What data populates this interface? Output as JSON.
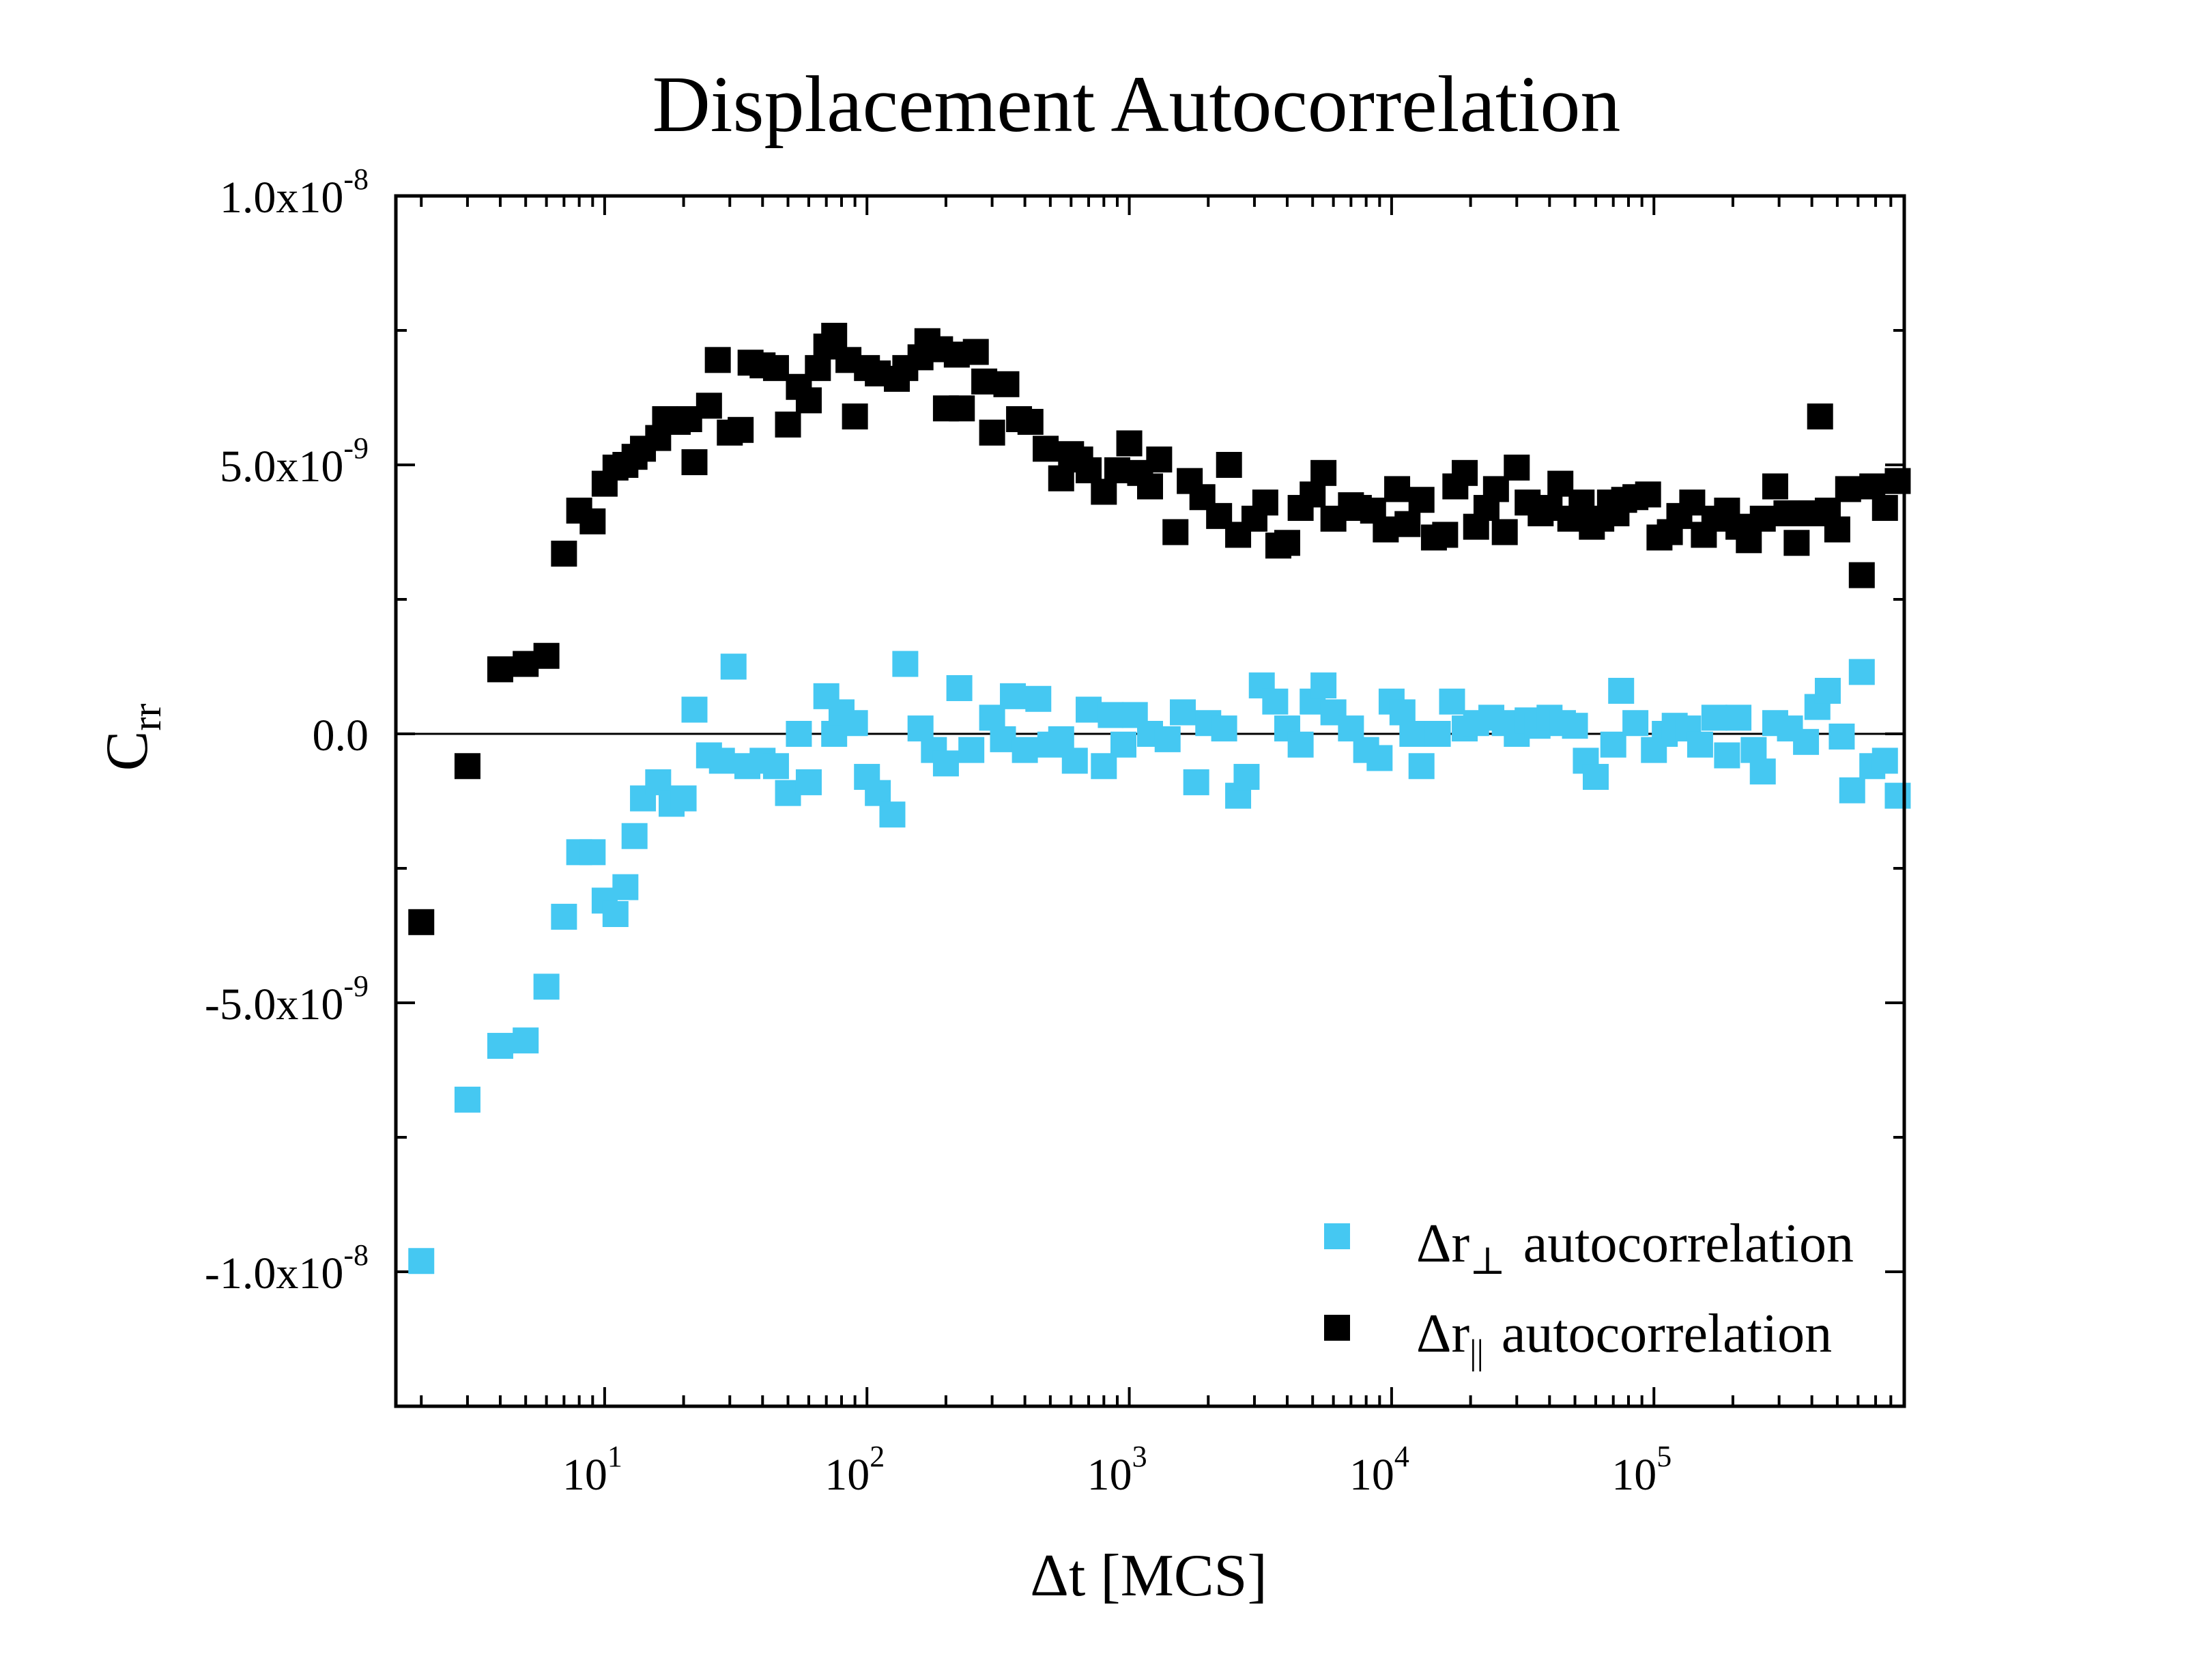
{
  "chart_data": {
    "type": "scatter",
    "title": "Displacement Autocorrelation",
    "xlabel": {
      "main": "Δt [MCS]"
    },
    "ylabel": {
      "main": "C",
      "sub": "rr"
    },
    "xscale": "log",
    "xlim": [
      1.6,
      900000
    ],
    "ylim": [
      -1.25e-08,
      1e-08
    ],
    "grid": false,
    "zero_line": true,
    "x_ticks": [
      {
        "value": 10,
        "base": "10",
        "exp": "1"
      },
      {
        "value": 100,
        "base": "10",
        "exp": "2"
      },
      {
        "value": 1000,
        "base": "10",
        "exp": "3"
      },
      {
        "value": 10000,
        "base": "10",
        "exp": "4"
      },
      {
        "value": 100000,
        "base": "10",
        "exp": "5"
      }
    ],
    "y_ticks": [
      {
        "value": 1e-08,
        "mantissa": "1.0x10",
        "exp": "-8"
      },
      {
        "value": 5e-09,
        "mantissa": "5.0x10",
        "exp": "-9"
      },
      {
        "value": 0,
        "mantissa": "0.0",
        "exp": ""
      },
      {
        "value": -5e-09,
        "mantissa": "-5.0x10",
        "exp": "-9"
      },
      {
        "value": -1e-08,
        "mantissa": "-1.0x10",
        "exp": "-8"
      }
    ],
    "legend_position": "bottom-right",
    "series": [
      {
        "name": "Δr⊥ autocorrelation",
        "label_main": "Δr",
        "label_sub": "⊥",
        "label_rest": "autocorrelation",
        "color": "#45c8f2",
        "points": [
          [
            2,
            -9.8e-09
          ],
          [
            3,
            -6.8e-09
          ],
          [
            4,
            -5.8e-09
          ],
          [
            5,
            -5.7e-09
          ],
          [
            6,
            -4.7e-09
          ],
          [
            7,
            -3.4e-09
          ],
          [
            8,
            -2.2e-09
          ],
          [
            9,
            -2.2e-09
          ],
          [
            10,
            -3.1e-09
          ],
          [
            11,
            -3.35e-09
          ],
          [
            12,
            -2.85e-09
          ],
          [
            13,
            -1.9e-09
          ],
          [
            14,
            -1.2e-09
          ],
          [
            16,
            -9e-10
          ],
          [
            18,
            -1.3e-09
          ],
          [
            20,
            -1.2e-09
          ],
          [
            22,
            4.5e-10
          ],
          [
            25,
            -4e-10
          ],
          [
            28,
            -5e-10
          ],
          [
            31,
            1.25e-09
          ],
          [
            35,
            -6e-10
          ],
          [
            40,
            -5e-10
          ],
          [
            45,
            -6e-10
          ],
          [
            50,
            -1.1e-09
          ],
          [
            55,
            0.0
          ],
          [
            60,
            -9e-10
          ],
          [
            70,
            7e-10
          ],
          [
            75,
            0.0
          ],
          [
            80,
            4e-10
          ],
          [
            90,
            2e-10
          ],
          [
            100,
            -8e-10
          ],
          [
            110,
            -1.1e-09
          ],
          [
            125,
            -1.5e-09
          ],
          [
            140,
            1.3e-09
          ],
          [
            160,
            1e-10
          ],
          [
            180,
            -3e-10
          ],
          [
            200,
            -5.5e-10
          ],
          [
            225,
            8.5e-10
          ],
          [
            250,
            -3e-10
          ],
          [
            300,
            3e-10
          ],
          [
            330,
            -1e-10
          ],
          [
            360,
            7e-10
          ],
          [
            400,
            -3e-10
          ],
          [
            450,
            6.5e-10
          ],
          [
            500,
            -2e-10
          ],
          [
            550,
            -1e-10
          ],
          [
            620,
            -5e-10
          ],
          [
            700,
            4.5e-10
          ],
          [
            800,
            -6e-10
          ],
          [
            850,
            3.5e-10
          ],
          [
            950,
            -2e-10
          ],
          [
            1050,
            3.5e-10
          ],
          [
            1200,
            0.0
          ],
          [
            1400,
            -1e-10
          ],
          [
            1600,
            4e-10
          ],
          [
            1800,
            -9e-10
          ],
          [
            2000,
            2e-10
          ],
          [
            2300,
            1e-10
          ],
          [
            2600,
            -1.15e-09
          ],
          [
            2800,
            -8e-10
          ],
          [
            3200,
            9e-10
          ],
          [
            3600,
            6e-10
          ],
          [
            4000,
            1e-10
          ],
          [
            4500,
            -2e-10
          ],
          [
            5000,
            6e-10
          ],
          [
            5500,
            9e-10
          ],
          [
            6000,
            4e-10
          ],
          [
            7000,
            1e-10
          ],
          [
            8000,
            -3e-10
          ],
          [
            9000,
            -4.5e-10
          ],
          [
            10000,
            6e-10
          ],
          [
            11000,
            4e-10
          ],
          [
            12000,
            0.0
          ],
          [
            13000,
            -6e-10
          ],
          [
            15000,
            0.0
          ],
          [
            17000,
            6e-10
          ],
          [
            19000,
            1e-10
          ],
          [
            21000,
            2e-10
          ],
          [
            24000,
            3e-10
          ],
          [
            27000,
            2e-10
          ],
          [
            30000,
            0.0
          ],
          [
            33000,
            2.5e-10
          ],
          [
            36000,
            1.5e-10
          ],
          [
            40000,
            3e-10
          ],
          [
            45000,
            2e-10
          ],
          [
            50000,
            1.5e-10
          ],
          [
            55000,
            -5e-10
          ],
          [
            60000,
            -8e-10
          ],
          [
            70000,
            -2e-10
          ],
          [
            75000,
            8e-10
          ],
          [
            85000,
            2e-10
          ],
          [
            100000,
            -3e-10
          ],
          [
            110000,
            0.0
          ],
          [
            120000,
            1.5e-10
          ],
          [
            135000,
            1e-10
          ],
          [
            150000,
            -2e-10
          ],
          [
            170000,
            3e-10
          ],
          [
            190000,
            -4e-10
          ],
          [
            210000,
            3e-10
          ],
          [
            240000,
            -3e-10
          ],
          [
            260000,
            -7e-10
          ],
          [
            290000,
            2e-10
          ],
          [
            330000,
            1e-10
          ],
          [
            380000,
            -1.5e-10
          ],
          [
            420000,
            5e-10
          ],
          [
            460000,
            8e-10
          ],
          [
            520000,
            -5e-11
          ],
          [
            570000,
            -1.05e-09
          ],
          [
            620000,
            1.15e-09
          ],
          [
            680000,
            -6e-10
          ],
          [
            760000,
            -5e-10
          ],
          [
            850000,
            -1.15e-09
          ]
        ]
      },
      {
        "name": "Δr∥ autocorrelation",
        "label_main": "Δr",
        "label_sub": "||",
        "label_rest": "autocorrelation",
        "color": "#000000",
        "points": [
          [
            2,
            -3.5e-09
          ],
          [
            3,
            -6e-10
          ],
          [
            4,
            1.2e-09
          ],
          [
            5,
            1.3e-09
          ],
          [
            6,
            1.45e-09
          ],
          [
            7,
            3.35e-09
          ],
          [
            8,
            4.15e-09
          ],
          [
            9,
            3.95e-09
          ],
          [
            10,
            4.65e-09
          ],
          [
            11,
            4.95e-09
          ],
          [
            12,
            5e-09
          ],
          [
            13,
            5.15e-09
          ],
          [
            14,
            5.3e-09
          ],
          [
            16,
            5.5e-09
          ],
          [
            17,
            5.85e-09
          ],
          [
            19,
            5.8e-09
          ],
          [
            21,
            5.85e-09
          ],
          [
            22,
            5.05e-09
          ],
          [
            25,
            6.1e-09
          ],
          [
            27,
            6.95e-09
          ],
          [
            30,
            5.6e-09
          ],
          [
            33,
            5.65e-09
          ],
          [
            36,
            6.9e-09
          ],
          [
            40,
            6.85e-09
          ],
          [
            45,
            6.8e-09
          ],
          [
            50,
            5.75e-09
          ],
          [
            55,
            6.45e-09
          ],
          [
            60,
            6.2e-09
          ],
          [
            65,
            6.8e-09
          ],
          [
            70,
            7.2e-09
          ],
          [
            75,
            7.4e-09
          ],
          [
            85,
            6.95e-09
          ],
          [
            90,
            5.9e-09
          ],
          [
            100,
            6.8e-09
          ],
          [
            110,
            6.7e-09
          ],
          [
            130,
            6.6e-09
          ],
          [
            140,
            6.8e-09
          ],
          [
            160,
            7e-09
          ],
          [
            170,
            7.3e-09
          ],
          [
            190,
            7.15e-09
          ],
          [
            200,
            6.05e-09
          ],
          [
            220,
            7.05e-09
          ],
          [
            230,
            6.05e-09
          ],
          [
            260,
            7.1e-09
          ],
          [
            280,
            6.55e-09
          ],
          [
            300,
            5.6e-09
          ],
          [
            340,
            6.5e-09
          ],
          [
            380,
            5.85e-09
          ],
          [
            420,
            5.8e-09
          ],
          [
            480,
            5.3e-09
          ],
          [
            550,
            4.75e-09
          ],
          [
            600,
            5.2e-09
          ],
          [
            650,
            5.1e-09
          ],
          [
            700,
            4.9e-09
          ],
          [
            800,
            4.5e-09
          ],
          [
            900,
            4.9e-09
          ],
          [
            1000,
            5.4e-09
          ],
          [
            1100,
            4.85e-09
          ],
          [
            1200,
            4.6e-09
          ],
          [
            1300,
            5.1e-09
          ],
          [
            1500,
            3.75e-09
          ],
          [
            1700,
            4.7e-09
          ],
          [
            1900,
            4.4e-09
          ],
          [
            2200,
            4.05e-09
          ],
          [
            2400,
            5e-09
          ],
          [
            2600,
            3.7e-09
          ],
          [
            3000,
            4e-09
          ],
          [
            3300,
            4.3e-09
          ],
          [
            3700,
            3.5e-09
          ],
          [
            4000,
            3.55e-09
          ],
          [
            4500,
            4.2e-09
          ],
          [
            5000,
            4.45e-09
          ],
          [
            5500,
            4.85e-09
          ],
          [
            6000,
            4e-09
          ],
          [
            7000,
            4.25e-09
          ],
          [
            7500,
            4.2e-09
          ],
          [
            8500,
            4.15e-09
          ],
          [
            9500,
            3.8e-09
          ],
          [
            10500,
            4.55e-09
          ],
          [
            11500,
            3.9e-09
          ],
          [
            13000,
            4.35e-09
          ],
          [
            14500,
            3.65e-09
          ],
          [
            16000,
            3.7e-09
          ],
          [
            17500,
            4.6e-09
          ],
          [
            19000,
            4.85e-09
          ],
          [
            21000,
            3.85e-09
          ],
          [
            23000,
            4.2e-09
          ],
          [
            25000,
            4.55e-09
          ],
          [
            27000,
            3.75e-09
          ],
          [
            30000,
            4.95e-09
          ],
          [
            33000,
            4.3e-09
          ],
          [
            37000,
            4.1e-09
          ],
          [
            40000,
            4.2e-09
          ],
          [
            44000,
            4.65e-09
          ],
          [
            48000,
            4e-09
          ],
          [
            53000,
            4.3e-09
          ],
          [
            58000,
            3.85e-09
          ],
          [
            63000,
            4e-09
          ],
          [
            68000,
            4.3e-09
          ],
          [
            72000,
            4.1e-09
          ],
          [
            77000,
            4.35e-09
          ],
          [
            85000,
            4.4e-09
          ],
          [
            95000,
            4.45e-09
          ],
          [
            105000,
            3.65e-09
          ],
          [
            115000,
            3.75e-09
          ],
          [
            125000,
            4.05e-09
          ],
          [
            140000,
            4.3e-09
          ],
          [
            155000,
            3.7e-09
          ],
          [
            170000,
            4e-09
          ],
          [
            190000,
            4.15e-09
          ],
          [
            210000,
            3.85e-09
          ],
          [
            230000,
            3.6e-09
          ],
          [
            260000,
            4e-09
          ],
          [
            290000,
            4.6e-09
          ],
          [
            320000,
            4.1e-09
          ],
          [
            350000,
            3.55e-09
          ],
          [
            400000,
            4.1e-09
          ],
          [
            430000,
            5.9e-09
          ],
          [
            460000,
            4.15e-09
          ],
          [
            500000,
            3.8e-09
          ],
          [
            550000,
            4.55e-09
          ],
          [
            620000,
            2.95e-09
          ],
          [
            680000,
            4.6e-09
          ],
          [
            760000,
            4.2e-09
          ],
          [
            850000,
            4.7e-09
          ]
        ]
      }
    ]
  }
}
